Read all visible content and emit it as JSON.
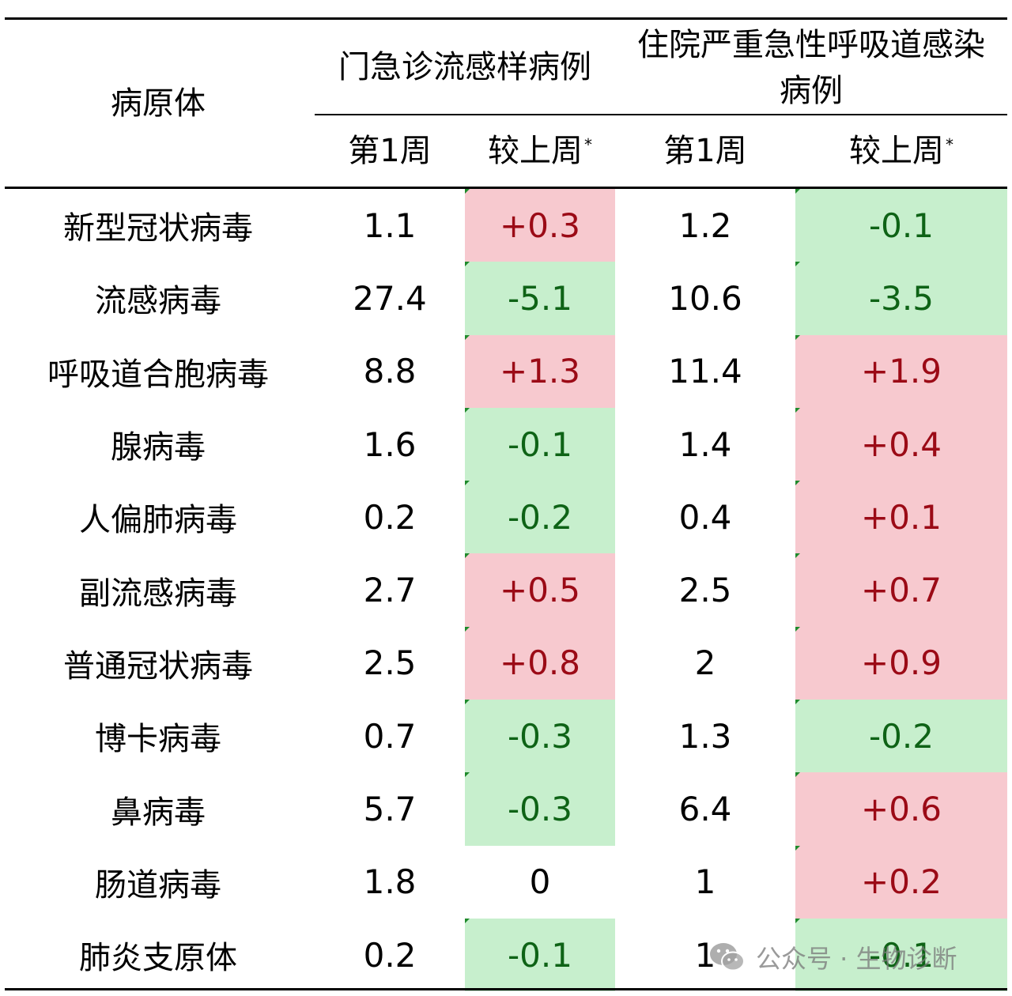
{
  "header": {
    "pathogen": "病原体",
    "outpatient": "门急诊流感样病例",
    "inpatient": "住院严重急性呼吸道感染病例",
    "week1": "第1周",
    "change": "较上周",
    "footnote_mark": "*"
  },
  "rows": [
    {
      "name": "新型冠状病毒",
      "outpatient_week1": "1.1",
      "outpatient_change": "+0.3",
      "inpatient_week1": "1.2",
      "inpatient_change": "-0.1"
    },
    {
      "name": "流感病毒",
      "outpatient_week1": "27.4",
      "outpatient_change": "-5.1",
      "inpatient_week1": "10.6",
      "inpatient_change": "-3.5"
    },
    {
      "name": "呼吸道合胞病毒",
      "outpatient_week1": "8.8",
      "outpatient_change": "+1.3",
      "inpatient_week1": "11.4",
      "inpatient_change": "+1.9"
    },
    {
      "name": "腺病毒",
      "outpatient_week1": "1.6",
      "outpatient_change": "-0.1",
      "inpatient_week1": "1.4",
      "inpatient_change": "+0.4"
    },
    {
      "name": "人偏肺病毒",
      "outpatient_week1": "0.2",
      "outpatient_change": "-0.2",
      "inpatient_week1": "0.4",
      "inpatient_change": "+0.1"
    },
    {
      "name": "副流感病毒",
      "outpatient_week1": "2.7",
      "outpatient_change": "+0.5",
      "inpatient_week1": "2.5",
      "inpatient_change": "+0.7"
    },
    {
      "name": "普通冠状病毒",
      "outpatient_week1": "2.5",
      "outpatient_change": "+0.8",
      "inpatient_week1": "2",
      "inpatient_change": "+0.9"
    },
    {
      "name": "博卡病毒",
      "outpatient_week1": "0.7",
      "outpatient_change": "-0.3",
      "inpatient_week1": "1.3",
      "inpatient_change": "-0.2"
    },
    {
      "name": "鼻病毒",
      "outpatient_week1": "5.7",
      "outpatient_change": "-0.3",
      "inpatient_week1": "6.4",
      "inpatient_change": "+0.6"
    },
    {
      "name": "肠道病毒",
      "outpatient_week1": "1.8",
      "outpatient_change": "0",
      "inpatient_week1": "1",
      "inpatient_change": "+0.2"
    },
    {
      "name": "肺炎支原体",
      "outpatient_week1": "0.2",
      "outpatient_change": "-0.1",
      "inpatient_week1": "1",
      "inpatient_change": "-0.1"
    }
  ],
  "colors": {
    "increase_bg": "#f7c9cf",
    "increase_text": "#9b0a16",
    "decrease_bg": "#c7efcd",
    "decrease_text": "#0e6316"
  },
  "watermark": {
    "icon": "wechat-icon",
    "text": "公众号 · 生物诊断"
  }
}
